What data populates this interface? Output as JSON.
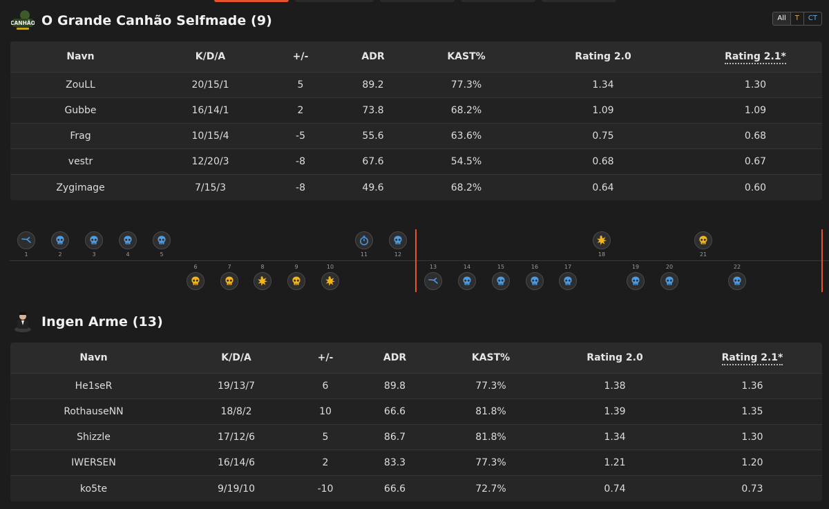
{
  "team1": {
    "title": "O Grande Canhão Selfmade (9)",
    "logo_text": "CANHÃO",
    "columns": [
      "Navn",
      "K/D/A",
      "+/-",
      "ADR",
      "KAST%",
      "Rating 2.0",
      "Rating 2.1*"
    ],
    "rows": [
      [
        "ZouLL",
        "20/15/1",
        "5",
        "89.2",
        "77.3%",
        "1.34",
        "1.30"
      ],
      [
        "Gubbe",
        "16/14/1",
        "2",
        "73.8",
        "68.2%",
        "1.09",
        "1.09"
      ],
      [
        "Frag",
        "10/15/4",
        "-5",
        "55.6",
        "63.6%",
        "0.75",
        "0.68"
      ],
      [
        "vestr",
        "12/20/3",
        "-8",
        "67.6",
        "54.5%",
        "0.68",
        "0.67"
      ],
      [
        "Zygimage",
        "7/15/3",
        "-8",
        "49.6",
        "68.2%",
        "0.64",
        "0.60"
      ]
    ]
  },
  "team2": {
    "title": "Ingen Arme (13)",
    "columns": [
      "Navn",
      "K/D/A",
      "+/-",
      "ADR",
      "KAST%",
      "Rating 2.0",
      "Rating 2.1*"
    ],
    "rows": [
      [
        "He1seR",
        "19/13/7",
        "6",
        "89.8",
        "77.3%",
        "1.38",
        "1.36"
      ],
      [
        "RothauseNN",
        "18/8/2",
        "10",
        "66.6",
        "81.8%",
        "1.39",
        "1.35"
      ],
      [
        "Shizzle",
        "17/12/6",
        "5",
        "86.7",
        "81.8%",
        "1.34",
        "1.30"
      ],
      [
        "IWERSEN",
        "16/14/6",
        "2",
        "83.3",
        "77.3%",
        "1.21",
        "1.20"
      ],
      [
        "ko5te",
        "9/19/10",
        "-10",
        "66.6",
        "72.7%",
        "0.74",
        "0.73"
      ]
    ]
  },
  "side_toggle": [
    "All",
    "T",
    "CT"
  ],
  "colors": {
    "ct": "#4f9be0",
    "t": "#f2b51e",
    "half_marker": "#e5542b",
    "background": "#1c1c1c"
  },
  "rounds": [
    {
      "n": "1",
      "winner": "top",
      "side": "ct",
      "icon": "defuse-icon"
    },
    {
      "n": "2",
      "winner": "top",
      "side": "ct",
      "icon": "skull-icon"
    },
    {
      "n": "3",
      "winner": "top",
      "side": "ct",
      "icon": "skull-icon"
    },
    {
      "n": "4",
      "winner": "top",
      "side": "ct",
      "icon": "skull-icon"
    },
    {
      "n": "5",
      "winner": "top",
      "side": "ct",
      "icon": "skull-icon"
    },
    {
      "n": "6",
      "winner": "bottom",
      "side": "t",
      "icon": "skull-icon"
    },
    {
      "n": "7",
      "winner": "bottom",
      "side": "t",
      "icon": "skull-icon"
    },
    {
      "n": "8",
      "winner": "bottom",
      "side": "t",
      "icon": "explosion-icon"
    },
    {
      "n": "9",
      "winner": "bottom",
      "side": "t",
      "icon": "skull-icon"
    },
    {
      "n": "10",
      "winner": "bottom",
      "side": "t",
      "icon": "explosion-icon"
    },
    {
      "n": "11",
      "winner": "top",
      "side": "ct",
      "icon": "stopwatch-icon"
    },
    {
      "n": "12",
      "winner": "top",
      "side": "ct",
      "icon": "skull-icon"
    },
    {
      "n": "13",
      "winner": "bottom",
      "side": "ct",
      "icon": "defuse-icon"
    },
    {
      "n": "14",
      "winner": "bottom",
      "side": "ct",
      "icon": "skull-icon"
    },
    {
      "n": "15",
      "winner": "bottom",
      "side": "ct",
      "icon": "skull-icon"
    },
    {
      "n": "16",
      "winner": "bottom",
      "side": "ct",
      "icon": "skull-icon"
    },
    {
      "n": "17",
      "winner": "bottom",
      "side": "ct",
      "icon": "skull-icon"
    },
    {
      "n": "18",
      "winner": "top",
      "side": "t",
      "icon": "explosion-icon"
    },
    {
      "n": "19",
      "winner": "bottom",
      "side": "ct",
      "icon": "skull-icon"
    },
    {
      "n": "20",
      "winner": "bottom",
      "side": "ct",
      "icon": "skull-icon"
    },
    {
      "n": "21",
      "winner": "top",
      "side": "t",
      "icon": "skull-icon"
    },
    {
      "n": "22",
      "winner": "bottom",
      "side": "ct",
      "icon": "skull-icon"
    }
  ]
}
